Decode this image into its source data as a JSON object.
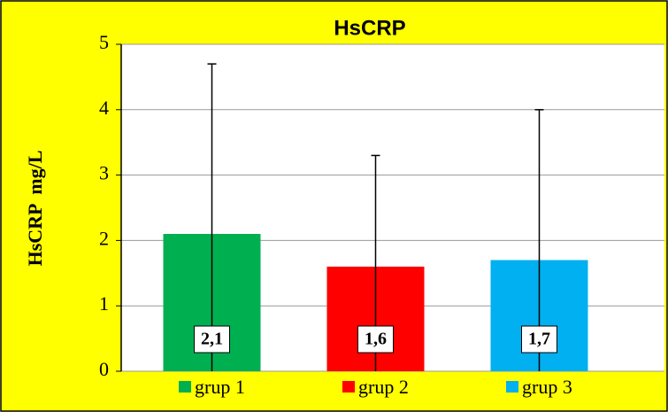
{
  "chart_data": {
    "type": "bar",
    "title": "HsCRP",
    "y_label": "HsCRP  mg/L",
    "series": [
      {
        "name": "grup 1",
        "color": "#00b050",
        "values": [
          2.1
        ],
        "value_labels": [
          "2,1"
        ],
        "errors": [
          2.6
        ]
      },
      {
        "name": "grup 2",
        "color": "#ff0000",
        "values": [
          1.6
        ],
        "value_labels": [
          "1,6"
        ],
        "errors": [
          1.7
        ]
      },
      {
        "name": "grup 3",
        "color": "#00b0f0",
        "values": [
          1.7
        ],
        "value_labels": [
          "1,7"
        ],
        "errors": [
          2.3
        ]
      }
    ],
    "ylim": [
      0,
      5
    ],
    "yticks": [
      0,
      1,
      2,
      3,
      4,
      5
    ],
    "grid": true,
    "legend": "bottom"
  }
}
